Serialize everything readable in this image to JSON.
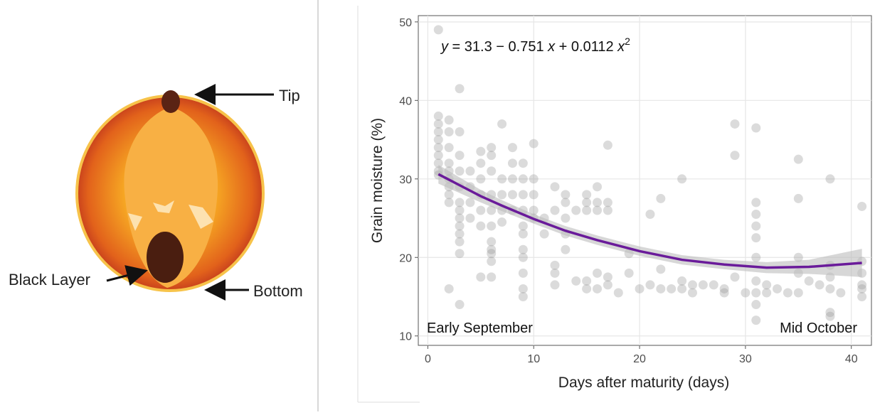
{
  "diagram": {
    "labels": {
      "tip": "Tip",
      "black_layer": "Black Layer",
      "bottom": "Bottom"
    }
  },
  "chart_data": {
    "type": "scatter",
    "x_label": "Days after maturity (days)",
    "y_label": "Grain moisture (%)",
    "equation": [
      "y",
      " = 31.3 − 0.751 ",
      "x",
      " + 0.0112 ",
      "x",
      "2"
    ],
    "annotations": [
      "Early September",
      "Mid October"
    ],
    "xlim": [
      -0.9,
      41.9
    ],
    "ylim": [
      8.8,
      50.8
    ],
    "xticks": [
      0,
      10,
      20,
      30,
      40
    ],
    "yticks": [
      10,
      20,
      30,
      40,
      50
    ],
    "grid": true,
    "color": "#999999",
    "x": [
      1,
      1,
      1,
      1,
      1,
      1,
      1,
      1,
      1,
      1,
      2,
      2,
      2,
      2,
      2,
      2,
      2,
      2,
      2,
      2,
      3,
      3,
      3,
      3,
      3,
      3,
      3,
      3,
      3,
      3,
      3,
      3,
      3,
      4,
      4,
      4,
      4,
      5,
      5,
      5,
      5,
      5,
      5,
      5,
      6,
      6,
      6,
      6,
      6,
      6,
      6,
      6,
      6,
      6,
      6,
      7,
      7,
      7,
      7,
      7,
      8,
      8,
      8,
      8,
      8,
      9,
      9,
      9,
      9,
      9,
      9,
      9,
      9,
      9,
      9,
      9,
      10,
      10,
      10,
      10,
      10,
      11,
      11,
      12,
      12,
      12,
      12,
      12,
      13,
      13,
      13,
      13,
      13,
      14,
      14,
      15,
      15,
      15,
      15,
      15,
      16,
      16,
      16,
      16,
      16,
      17,
      17,
      17,
      17,
      17,
      18,
      19,
      19,
      20,
      21,
      21,
      22,
      22,
      22,
      23,
      24,
      24,
      24,
      25,
      25,
      26,
      27,
      28,
      28,
      29,
      29,
      29,
      30,
      31,
      31,
      31,
      31,
      31,
      31,
      31,
      31,
      31,
      31,
      32,
      32,
      33,
      34,
      35,
      35,
      35,
      35,
      35,
      36,
      37,
      38,
      38,
      38,
      38,
      38,
      38,
      39,
      41,
      41,
      41,
      41,
      41,
      41
    ],
    "values": [
      49,
      38,
      37,
      36,
      35,
      34,
      33,
      32,
      31,
      30.5,
      37.5,
      36,
      34,
      32,
      31,
      30,
      29,
      28,
      27,
      16,
      41.5,
      36,
      33,
      31,
      29,
      27,
      26,
      25,
      24,
      23,
      22,
      20.5,
      14,
      31,
      29,
      27,
      25,
      33.5,
      32,
      30,
      28,
      26,
      24,
      17.5,
      34,
      33,
      31,
      28,
      26,
      24,
      22,
      21,
      20.5,
      19.5,
      17.5,
      37,
      30,
      28,
      26,
      24.5,
      34,
      32,
      30,
      28,
      26,
      32,
      30,
      28,
      26,
      24,
      23,
      21,
      20,
      18,
      16,
      15,
      34.5,
      30,
      28,
      26,
      25,
      25,
      23,
      29,
      26,
      19,
      18,
      16.5,
      28,
      27,
      25,
      23,
      21,
      26,
      17,
      28,
      27,
      26,
      17,
      16,
      29,
      27,
      26,
      18,
      16,
      34.3,
      27,
      26,
      17.5,
      16.5,
      15.5,
      20.5,
      18,
      16,
      25.5,
      16.5,
      27.5,
      18.5,
      16,
      16,
      30,
      17,
      16,
      16.5,
      15.5,
      16.5,
      16.5,
      16,
      15.5,
      37,
      33,
      17.5,
      15.5,
      36.5,
      27,
      25.5,
      24,
      22.5,
      20,
      17,
      15.5,
      14,
      12,
      16.5,
      15.5,
      16,
      15.5,
      32.5,
      27.5,
      20,
      18,
      15.5,
      17,
      16.5,
      30,
      19,
      17.5,
      16,
      13,
      12.5,
      15.5,
      26.5,
      19.5,
      18,
      16.5,
      16,
      15
    ],
    "fit": {
      "color": "#6a1b9a",
      "band_color": "#bdbdbd",
      "x": [
        1,
        3,
        5,
        7,
        10,
        13,
        16,
        20,
        24,
        28,
        32,
        36,
        41
      ],
      "values": [
        30.6,
        29.2,
        27.8,
        26.6,
        24.9,
        23.4,
        22.2,
        20.8,
        19.7,
        19.1,
        18.7,
        18.8,
        19.3
      ],
      "upper": [
        31.8,
        30.2,
        28.6,
        27.3,
        25.5,
        24.0,
        22.8,
        21.4,
        20.3,
        19.7,
        19.4,
        19.7,
        21.1
      ],
      "lower": [
        29.4,
        28.2,
        27.0,
        25.9,
        24.3,
        22.8,
        21.6,
        20.2,
        19.1,
        18.5,
        18.0,
        17.9,
        17.5
      ]
    }
  }
}
